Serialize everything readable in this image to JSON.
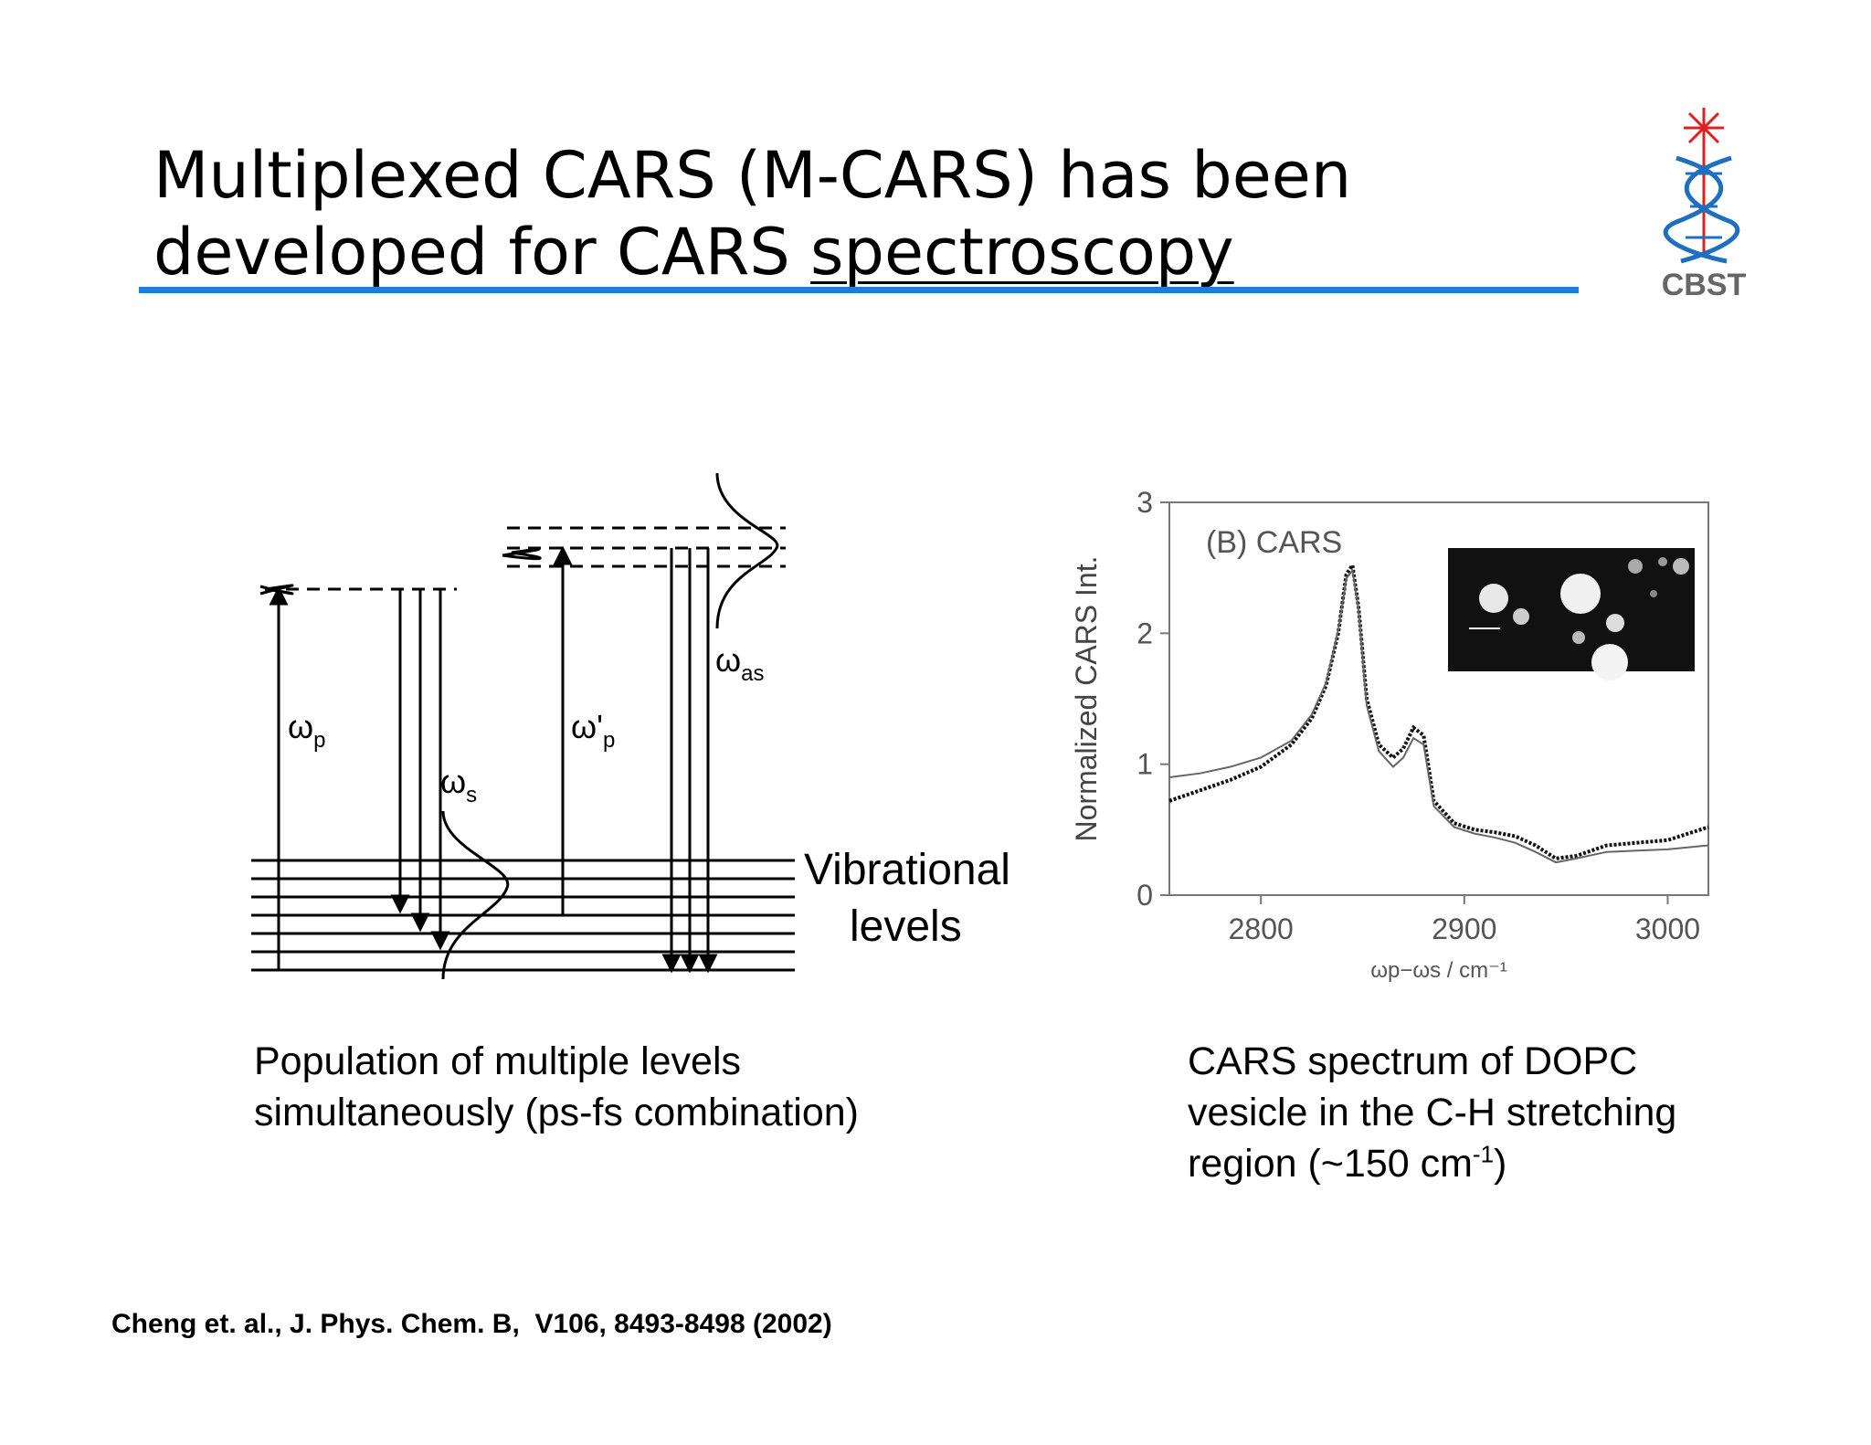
{
  "slide": {
    "title_line1": "Multiplexed CARS (M-CARS) has been",
    "title_line2_plain": "developed for CARS ",
    "title_line2_underlined": "spectroscopy",
    "logo_text": "CBST"
  },
  "diagram": {
    "label_wp": "ω",
    "label_wp_sub": "p",
    "label_ws": "ω",
    "label_ws_sub": "s",
    "label_wpp": "ω'",
    "label_wpp_sub": "p",
    "label_was": "ω",
    "label_was_sub": "as",
    "vib_line1": "Vibrational",
    "vib_line2": "levels"
  },
  "chart_data": {
    "type": "line",
    "annotation": "(B) CARS",
    "ylabel": "Normalized CARS Int.",
    "xlabel": "ωp−ωs / cm⁻¹",
    "xlim": [
      2755,
      3020
    ],
    "ylim": [
      0,
      3
    ],
    "xticks": [
      2800,
      2900,
      3000
    ],
    "yticks": [
      0,
      1,
      2,
      3
    ],
    "grid": false,
    "series": [
      {
        "style": "dotted-data",
        "x": [
          2755,
          2770,
          2785,
          2800,
          2815,
          2825,
          2832,
          2838,
          2842,
          2845,
          2848,
          2852,
          2858,
          2865,
          2870,
          2875,
          2880,
          2885,
          2895,
          2905,
          2915,
          2925,
          2935,
          2945,
          2955,
          2970,
          2985,
          3000,
          3020
        ],
        "y": [
          0.72,
          0.8,
          0.88,
          0.98,
          1.15,
          1.35,
          1.6,
          2.0,
          2.45,
          2.52,
          2.2,
          1.5,
          1.15,
          1.05,
          1.12,
          1.28,
          1.22,
          0.72,
          0.55,
          0.5,
          0.48,
          0.45,
          0.38,
          0.28,
          0.3,
          0.38,
          0.4,
          0.42,
          0.52
        ]
      },
      {
        "style": "fit",
        "x": [
          2755,
          2770,
          2785,
          2800,
          2815,
          2825,
          2832,
          2838,
          2842,
          2845,
          2848,
          2852,
          2858,
          2865,
          2870,
          2875,
          2880,
          2885,
          2895,
          2905,
          2915,
          2925,
          2935,
          2945,
          2955,
          2970,
          2985,
          3000,
          3020
        ],
        "y": [
          0.9,
          0.93,
          0.98,
          1.05,
          1.18,
          1.38,
          1.62,
          2.02,
          2.42,
          2.48,
          2.18,
          1.45,
          1.1,
          0.98,
          1.05,
          1.2,
          1.15,
          0.68,
          0.52,
          0.47,
          0.44,
          0.4,
          0.33,
          0.25,
          0.28,
          0.33,
          0.34,
          0.35,
          0.38
        ]
      }
    ]
  }
}
